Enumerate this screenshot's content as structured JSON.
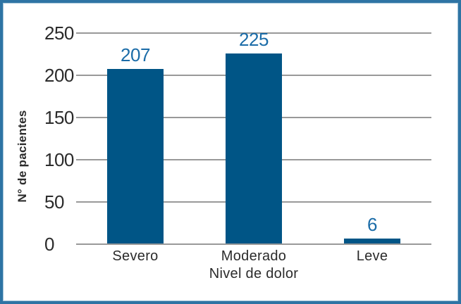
{
  "figure": {
    "background": "#ffffff",
    "border_color": "#2e74a4"
  },
  "chart_data": {
    "type": "bar",
    "title": "",
    "categories": [
      "Severo",
      "Moderado",
      "Leve"
    ],
    "values": [
      207,
      225,
      6
    ],
    "xlabel": "Nivel de dolor",
    "ylabel": "N° de pacientes",
    "ylim": [
      0,
      250
    ],
    "yticks": [
      0,
      50,
      100,
      150,
      200,
      250
    ],
    "grid": "horizontal",
    "legend": "none",
    "bar_color": "#005586",
    "value_label_color": "#1b6ca8",
    "gridline_color": "#999999",
    "text_color": "#2b2b2b"
  }
}
